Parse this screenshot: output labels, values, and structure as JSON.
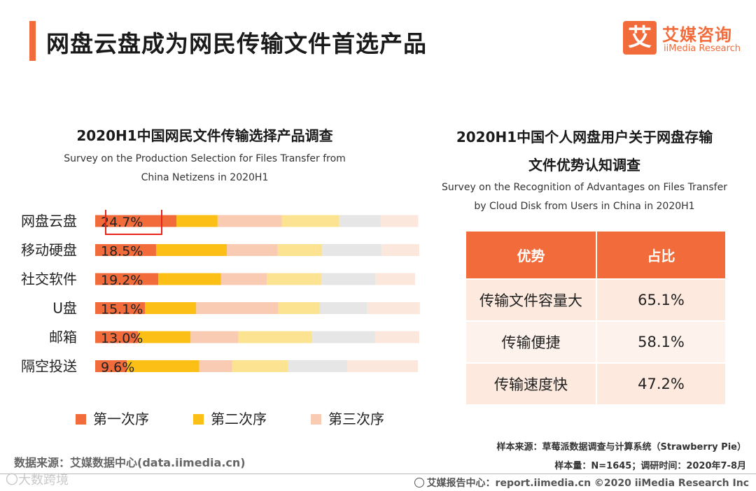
{
  "header": {
    "title": "网盘云盘成为网民传输文件首选产品",
    "logo_mark": "艾",
    "logo_cn": "艾媒咨询",
    "logo_en": "iiMedia Research"
  },
  "colors": {
    "accent": "#f26b3a",
    "first": "#f26b3a",
    "second": "#fbbf16",
    "third": "#f9cbb2",
    "fourth": "#fbe391",
    "fifth": "#e6e6e6",
    "sixth": "#fbe7dc"
  },
  "left_chart": {
    "title": "2020H1中国网民文件传输选择产品调查",
    "subtitle_line1": "Survey on the Production Selection for Files Transfer from",
    "subtitle_line2": "China Netizens in 2020H1"
  },
  "chart_data": {
    "type": "bar",
    "orientation": "horizontal",
    "stacked": true,
    "title": "2020H1中国网民文件传输选择产品调查",
    "categories": [
      "网盘云盘",
      "移动硬盘",
      "社交软件",
      "U盘",
      "邮箱",
      "隔空投送"
    ],
    "value_labels": [
      "24.7%",
      "18.5%",
      "19.2%",
      "15.1%",
      "13.0%",
      "9.6%"
    ],
    "highlight_index": 0,
    "series": [
      {
        "name": "第一次序",
        "color": "#f26b3a",
        "values": [
          24.7,
          18.5,
          19.2,
          15.1,
          13.0,
          9.6
        ]
      },
      {
        "name": "第二次序",
        "color": "#fbbf16",
        "values": [
          12.5,
          21.5,
          19.0,
          15.6,
          16.0,
          22.0
        ]
      },
      {
        "name": "第三次序",
        "color": "#f9cbb2",
        "values": [
          19.5,
          15.5,
          14.0,
          25.0,
          14.5,
          10.0
        ]
      },
      {
        "name": "",
        "color": "#fbe391",
        "values": [
          17.5,
          13.5,
          16.5,
          12.5,
          22.5,
          17.0
        ]
      },
      {
        "name": "",
        "color": "#e6e6e6",
        "values": [
          12.5,
          18.0,
          16.5,
          14.5,
          19.0,
          18.0
        ]
      },
      {
        "name": "",
        "color": "#fbe7dc",
        "values": [
          11.5,
          11.5,
          12.0,
          16.0,
          13.5,
          21.5
        ]
      }
    ],
    "xlim": [
      0,
      100
    ]
  },
  "legend": [
    {
      "label": "第一次序",
      "color": "#f26b3a"
    },
    {
      "label": "第二次序",
      "color": "#fbbf16"
    },
    {
      "label": "第三次序",
      "color": "#f9cbb2"
    }
  ],
  "right_chart": {
    "title_line1": "2020H1中国个人网盘用户关于网盘存输",
    "title_line2": "文件优势认知调查",
    "subtitle_line1": "Survey on the Recognition of Advantages on Files Transfer",
    "subtitle_line2": "by Cloud Disk from Users in China in 2020H1",
    "columns": [
      "优势",
      "占比"
    ],
    "rows": [
      {
        "item": "传输文件容量大",
        "share": "65.1%"
      },
      {
        "item": "传输便捷",
        "share": "58.1%"
      },
      {
        "item": "传输速度快",
        "share": "47.2%"
      }
    ]
  },
  "footer": {
    "source_left": "数据来源：艾媒数据中心(data.iimedia.cn)",
    "watermark": "〇大数跨境",
    "source_right": "样本来源：草莓派数据调查与计算系统（Strawberry Pie）",
    "sample": "样本量：N=1645；调研时间：2020年7-8月",
    "report": "艾媒报告中心：report.iimedia.cn ©2020 iiMedia Research Inc"
  }
}
